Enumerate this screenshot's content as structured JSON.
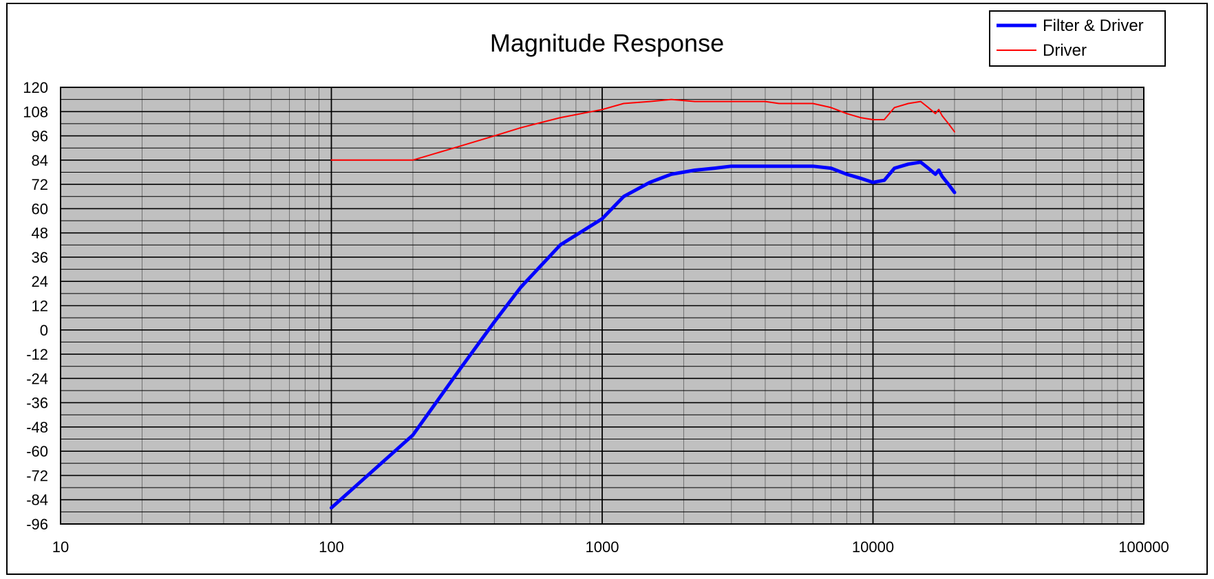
{
  "chart_data": {
    "type": "line",
    "title": "Magnitude Response",
    "xlabel": "",
    "ylabel": "",
    "x_scale": "log",
    "xlim": [
      10,
      100000
    ],
    "ylim": [
      -96,
      120
    ],
    "x_ticks": [
      "10",
      "100",
      "1000",
      "10000",
      "100000"
    ],
    "y_ticks": [
      "120",
      "108",
      "96",
      "84",
      "72",
      "60",
      "48",
      "36",
      "24",
      "12",
      "0",
      "-12",
      "-24",
      "-36",
      "-48",
      "-60",
      "-72",
      "-84",
      "-96"
    ],
    "grid": true,
    "legend_position": "top-right",
    "colors": {
      "plot_background": "#c0c0c0",
      "filter_driver": "#0000ff",
      "driver": "#ff0000"
    },
    "series": [
      {
        "name": "Filter & Driver",
        "color": "#0000ff",
        "x": [
          100,
          200,
          300,
          400,
          500,
          700,
          1000,
          1200,
          1500,
          1800,
          2200,
          2600,
          3000,
          3500,
          4000,
          4500,
          5000,
          6000,
          7000,
          8000,
          9000,
          10000,
          11000,
          12000,
          13500,
          15000,
          16000,
          17000,
          17500,
          18000,
          19000,
          20000
        ],
        "y": [
          -88,
          -52,
          -19,
          4,
          21,
          42,
          55,
          66,
          73,
          77,
          79,
          80,
          81,
          81,
          81,
          81,
          81,
          81,
          80,
          77,
          75,
          73,
          74,
          80,
          82,
          83,
          80,
          77,
          79,
          76,
          72,
          68
        ]
      },
      {
        "name": "Driver",
        "color": "#ff0000",
        "x": [
          100,
          200,
          300,
          400,
          500,
          700,
          1000,
          1200,
          1500,
          1800,
          2200,
          2600,
          3000,
          3500,
          4000,
          4500,
          5000,
          6000,
          7000,
          8000,
          9000,
          10000,
          11000,
          12000,
          13500,
          15000,
          16000,
          17000,
          17500,
          18000,
          19000,
          20000
        ],
        "y": [
          84,
          84,
          91,
          96,
          100,
          105,
          109,
          112,
          113,
          114,
          113,
          113,
          113,
          113,
          113,
          112,
          112,
          112,
          110,
          107,
          105,
          104,
          104,
          110,
          112,
          113,
          110,
          107,
          109,
          106,
          102,
          98
        ]
      }
    ]
  }
}
